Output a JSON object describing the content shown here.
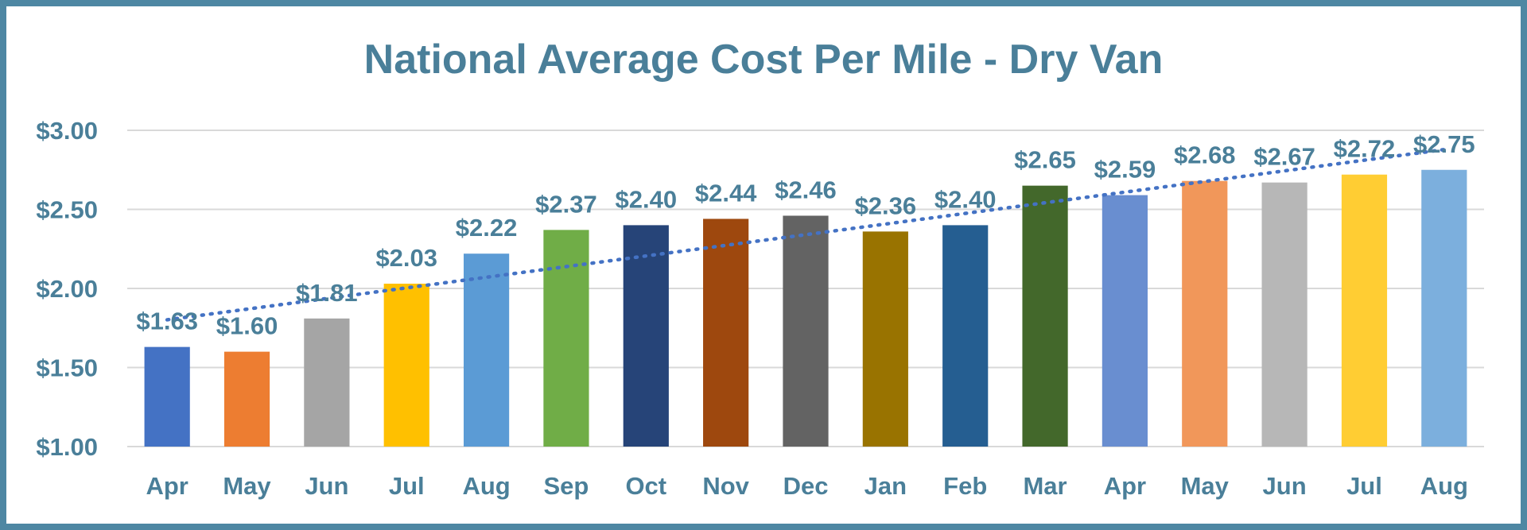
{
  "chart_data": {
    "type": "bar",
    "title": "National Average Cost Per Mile - Dry Van",
    "xlabel": "",
    "ylabel": "",
    "ylim": [
      1.0,
      3.0
    ],
    "yticks": [
      1.0,
      1.5,
      2.0,
      2.5,
      3.0
    ],
    "ytick_labels": [
      "$1.00",
      "$1.50",
      "$2.00",
      "$2.50",
      "$3.00"
    ],
    "grid": true,
    "categories": [
      "Apr",
      "May",
      "Jun",
      "Jul",
      "Aug",
      "Sep",
      "Oct",
      "Nov",
      "Dec",
      "Jan",
      "Feb",
      "Mar",
      "Apr",
      "May",
      "Jun",
      "Jul",
      "Aug"
    ],
    "values": [
      1.63,
      1.6,
      1.81,
      2.03,
      2.22,
      2.37,
      2.4,
      2.44,
      2.46,
      2.36,
      2.4,
      2.65,
      2.59,
      2.68,
      2.67,
      2.72,
      2.75
    ],
    "value_labels": [
      "$1.63",
      "$1.60",
      "$1.81",
      "$2.03",
      "$2.22",
      "$2.37",
      "$2.40",
      "$2.44",
      "$2.46",
      "$2.36",
      "$2.40",
      "$2.65",
      "$2.59",
      "$2.68",
      "$2.67",
      "$2.72",
      "$2.75"
    ],
    "bar_colors": [
      "#4472c4",
      "#ed7d31",
      "#a5a5a5",
      "#ffc000",
      "#5b9bd5",
      "#70ad47",
      "#264478",
      "#9e480e",
      "#636363",
      "#997300",
      "#255e91",
      "#43682b",
      "#698ed0",
      "#f1975a",
      "#b7b7b7",
      "#ffcd33",
      "#7cafdd"
    ],
    "trendline": {
      "type": "linear",
      "style": "dotted",
      "color": "#4472c4"
    },
    "colors": {
      "border": "#4e87a3",
      "text": "#4a7f99",
      "grid": "#d9d9d9"
    }
  }
}
